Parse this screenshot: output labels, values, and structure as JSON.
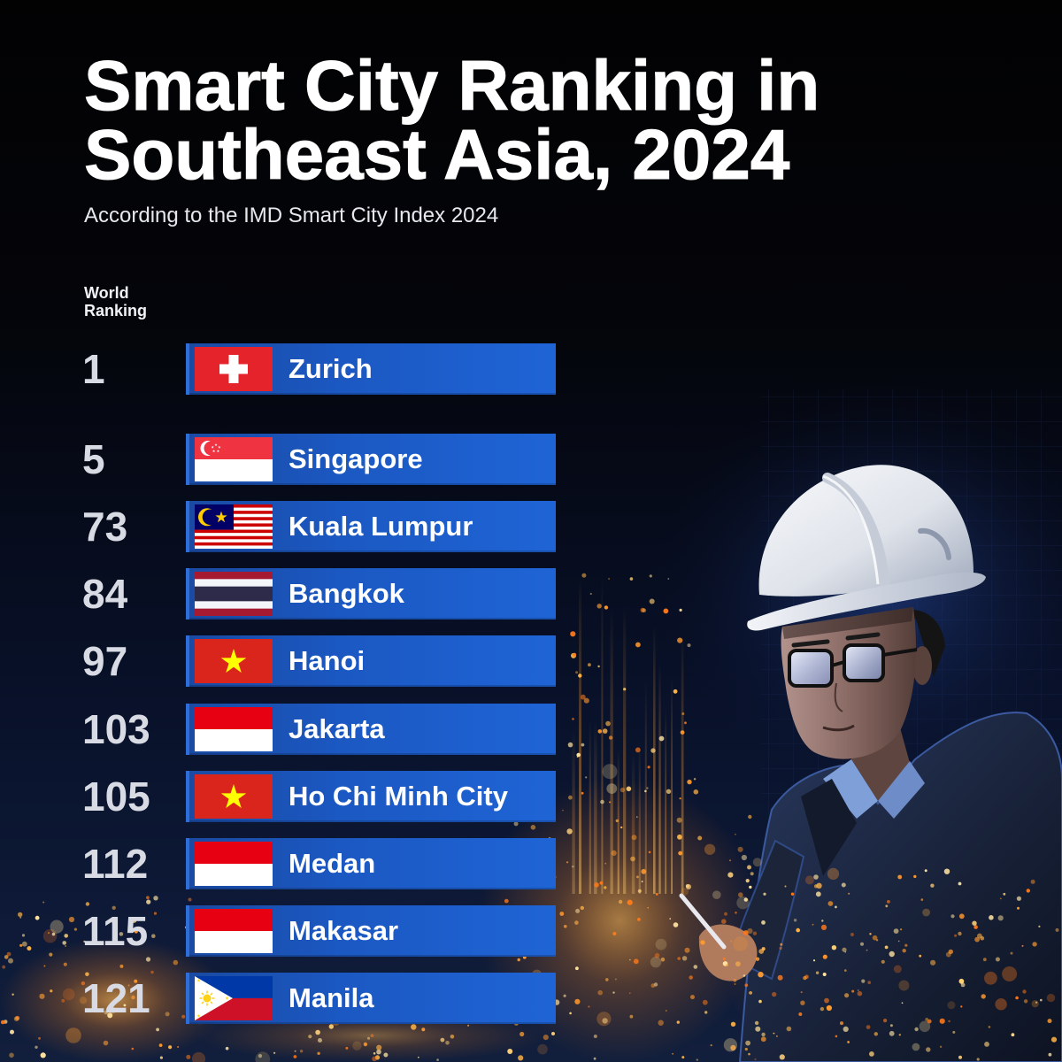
{
  "colors": {
    "bar_start": "#1a4aa3",
    "bar_mid": "#1b58c2",
    "bar_end": "#1f64d6",
    "rank_text": "#d8dbe3"
  },
  "chart_data": {
    "type": "table",
    "title_lines": [
      "Smart City Ranking in",
      "Southeast Asia, 2024"
    ],
    "subtitle": "According to the IMD Smart City Index 2024",
    "rank_label": "World Ranking",
    "rows": [
      {
        "rank": 1,
        "city": "Zurich",
        "flag": "switzerland-flag"
      },
      {
        "rank": 5,
        "city": "Singapore",
        "flag": "singapore-flag"
      },
      {
        "rank": 73,
        "city": "Kuala Lumpur",
        "flag": "malaysia-flag"
      },
      {
        "rank": 84,
        "city": "Bangkok",
        "flag": "thailand-flag"
      },
      {
        "rank": 97,
        "city": "Hanoi",
        "flag": "vietnam-flag"
      },
      {
        "rank": 103,
        "city": "Jakarta",
        "flag": "indonesia-flag"
      },
      {
        "rank": 105,
        "city": "Ho Chi Minh City",
        "flag": "vietnam-flag"
      },
      {
        "rank": 112,
        "city": "Medan",
        "flag": "indonesia-flag"
      },
      {
        "rank": 115,
        "city": "Makasar",
        "flag": "indonesia-flag"
      },
      {
        "rank": 121,
        "city": "Manila",
        "flag": "philippines-flag"
      }
    ]
  }
}
